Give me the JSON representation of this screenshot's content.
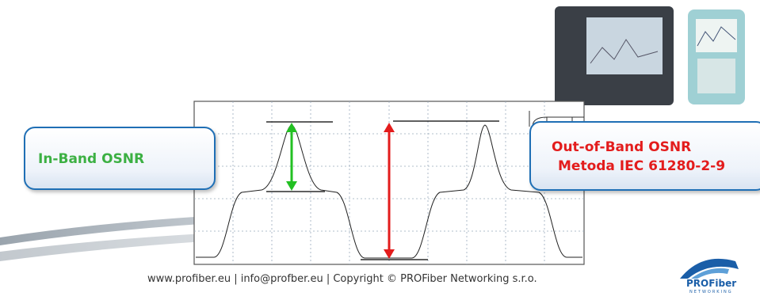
{
  "slide": {
    "in_band_label": "In-Band OSNR",
    "out_of_band_label": "Out-of-Band OSNR",
    "out_of_band_method": "Metoda IEC 61280-2-9",
    "footer": "www.profiber.eu  |  info@profber.eu  | Copyright © PROFiber Networking s.r.o.",
    "logo": {
      "name": "PROFiber",
      "tagline": "NETWORKING"
    }
  }
}
